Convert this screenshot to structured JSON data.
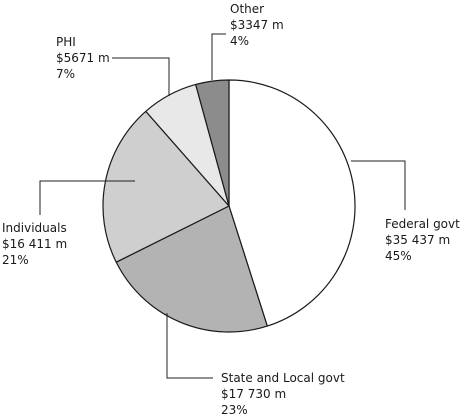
{
  "chart_data": {
    "type": "pie",
    "title": "",
    "slices": [
      {
        "label": "Federal govt",
        "amount": "$35 437 m",
        "percent": "45%",
        "value": 35437,
        "color": "#ffffff"
      },
      {
        "label": "State and Local govt",
        "amount": "$17 730 m",
        "percent": "23%",
        "value": 17730,
        "color": "#b3b3b3"
      },
      {
        "label": "Individuals",
        "amount": "$16 411 m",
        "percent": "21%",
        "value": 16411,
        "color": "#cfcfcf"
      },
      {
        "label": "PHI",
        "amount": "$5671 m",
        "percent": "7%",
        "value": 5671,
        "color": "#e8e8e8"
      },
      {
        "label": "Other",
        "amount": "$3347 m",
        "percent": "4%",
        "value": 3347,
        "color": "#8c8c8c"
      }
    ],
    "start_angle_deg": 0,
    "direction": "clockwise",
    "legend": "none"
  }
}
